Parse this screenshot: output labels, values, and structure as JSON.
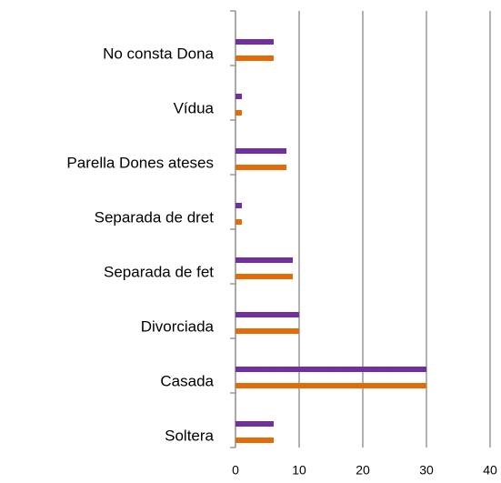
{
  "chart_data": {
    "type": "barh",
    "categories": [
      "Soltera",
      "Casada",
      "Divorciada",
      "Separada de fet",
      "Separada de dret",
      "Parella Dones ateses",
      "Vídua",
      "No consta Dona"
    ],
    "series": [
      {
        "color": "#7030a0",
        "values": [
          6,
          30,
          10,
          9,
          1,
          8,
          1,
          6
        ]
      },
      {
        "color": "#e36c09",
        "values": [
          6,
          30,
          10,
          9,
          1,
          8,
          1,
          6
        ]
      }
    ],
    "xlim": [
      0,
      40
    ],
    "xticks": [
      0,
      10,
      20,
      30,
      40
    ],
    "grid": true
  }
}
